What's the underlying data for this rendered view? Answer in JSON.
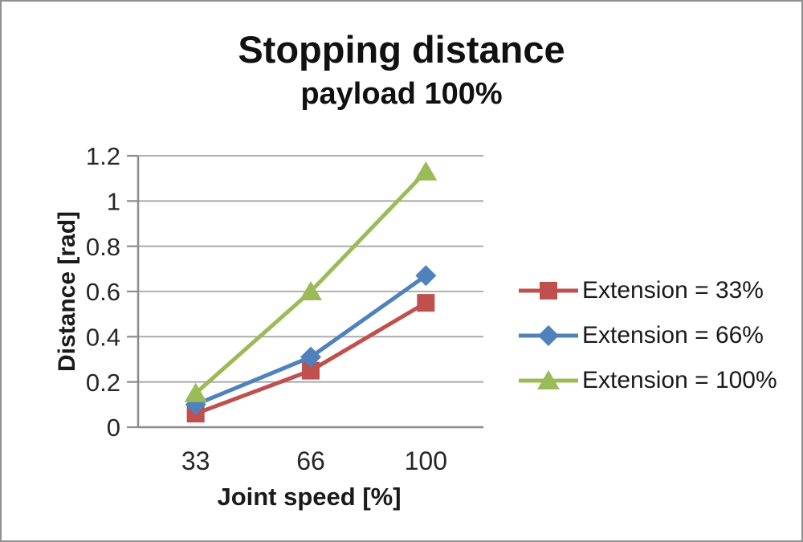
{
  "chart_data": {
    "type": "line",
    "title": "Stopping distance",
    "subtitle": "payload 100%",
    "xlabel": "Joint speed [%]",
    "ylabel": "Distance [rad]",
    "categories": [
      "33",
      "66",
      "100"
    ],
    "series": [
      {
        "name": "Extension = 33%",
        "marker": "square",
        "color": "#C0504D",
        "values": [
          0.06,
          0.25,
          0.55
        ]
      },
      {
        "name": "Extension = 66%",
        "marker": "diamond",
        "color": "#4F81BD",
        "values": [
          0.1,
          0.31,
          0.67
        ]
      },
      {
        "name": "Extension = 100%",
        "marker": "triangle",
        "color": "#9BBB59",
        "values": [
          0.15,
          0.6,
          1.13
        ]
      }
    ],
    "ylim": [
      0,
      1.2
    ],
    "ytick_step": 0.2,
    "ytick_labels": [
      "0",
      "0.2",
      "0.4",
      "0.6",
      "0.8",
      "1",
      "1.2"
    ],
    "grid": true,
    "legend_position": "right",
    "colors": {
      "gridline": "#a6a6a6",
      "axis_line": "#8c8c8c",
      "tick_label": "#262626",
      "title_text": "#111111",
      "frame_border": "#909090"
    }
  }
}
